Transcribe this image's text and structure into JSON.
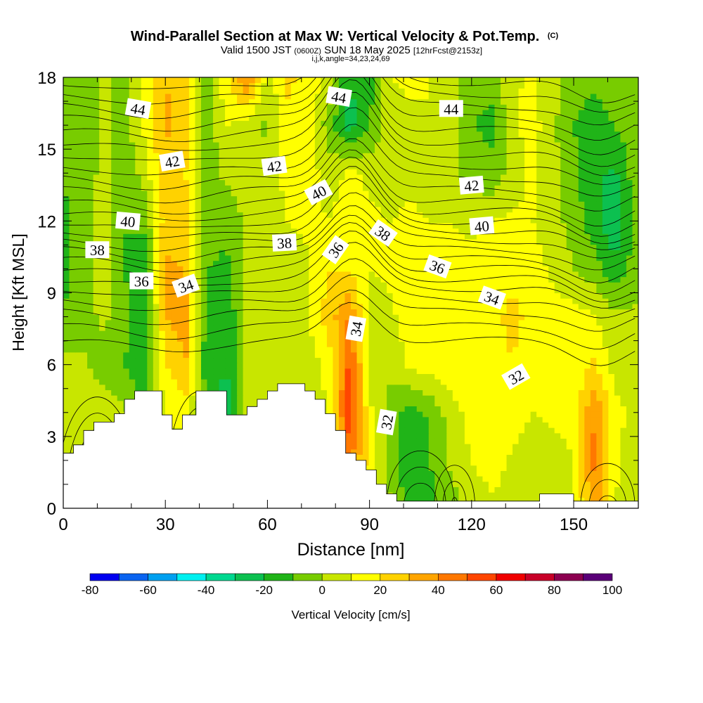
{
  "header": {
    "title": "Wind-Parallel Section at Max W: Vertical Velocity & Pot.Temp.",
    "copyright": "(C)",
    "valid_prefix": "Valid 1500 JST",
    "valid_utc": "(0600Z)",
    "valid_date": "SUN 18 May 2025",
    "forecast": "[12hrFcst@2153z]",
    "indices": "i,j,k,angle=34,23,24,69"
  },
  "chart_data": {
    "type": "heatmap",
    "xlabel": "Distance [nm]",
    "ylabel": "Height [Kft MSL]",
    "xlim": [
      0,
      169
    ],
    "ylim": [
      0,
      18
    ],
    "x_ticks": [
      0,
      30,
      60,
      90,
      120,
      150
    ],
    "y_ticks": [
      0,
      3,
      6,
      9,
      12,
      15,
      18
    ],
    "colorbar": {
      "label": "Vertical Velocity [cm/s]",
      "tick_values": [
        -80,
        -60,
        -40,
        -20,
        0,
        20,
        40,
        60,
        80,
        100
      ],
      "bounds": [
        -80,
        -70,
        -60,
        -50,
        -40,
        -30,
        -20,
        -10,
        0,
        10,
        20,
        30,
        40,
        50,
        60,
        70,
        80,
        90,
        100
      ],
      "colors": [
        "#0000f0",
        "#0a64f0",
        "#00a0f0",
        "#00f0f0",
        "#00d890",
        "#0cc050",
        "#20b418",
        "#78cc00",
        "#c8e600",
        "#ffff00",
        "#ffd200",
        "#ffa500",
        "#ff7800",
        "#ff4600",
        "#f00000",
        "#c80028",
        "#8c0050",
        "#5a0078"
      ]
    },
    "field": {
      "x": [
        0,
        6,
        12,
        18,
        24,
        30,
        36,
        42,
        48,
        54,
        60,
        66,
        72,
        78,
        84,
        90,
        96,
        102,
        108,
        114,
        120,
        126,
        132,
        138,
        144,
        150,
        156,
        162,
        168
      ],
      "z": [
        0,
        2,
        4,
        6,
        8,
        10,
        12,
        14,
        16,
        18
      ],
      "w": [
        [
          2,
          8,
          5,
          3,
          2,
          3,
          2,
          3,
          2,
          2,
          2,
          3,
          2,
          6,
          35,
          10,
          2,
          -15,
          -12,
          -5,
          3,
          8,
          5,
          3,
          2,
          8,
          38,
          10,
          5
        ],
        [
          6,
          10,
          8,
          5,
          4,
          5,
          3,
          -5,
          -10,
          4,
          5,
          3,
          2,
          8,
          45,
          15,
          -5,
          -18,
          -10,
          2,
          10,
          15,
          8,
          5,
          5,
          10,
          42,
          12,
          5
        ],
        [
          8,
          6,
          5,
          2,
          -15,
          10,
          15,
          -12,
          -25,
          5,
          3,
          4,
          3,
          10,
          58,
          12,
          -5,
          -15,
          -8,
          5,
          15,
          18,
          15,
          10,
          12,
          15,
          40,
          14,
          6
        ],
        [
          3,
          2,
          -5,
          -10,
          -15,
          20,
          30,
          -15,
          -20,
          3,
          2,
          5,
          3,
          15,
          52,
          10,
          3,
          12,
          15,
          18,
          12,
          16,
          20,
          14,
          10,
          12,
          22,
          5,
          3
        ],
        [
          -10,
          -5,
          3,
          -8,
          -15,
          30,
          35,
          -15,
          -18,
          3,
          5,
          8,
          10,
          25,
          40,
          5,
          8,
          15,
          18,
          20,
          14,
          18,
          22,
          18,
          14,
          15,
          10,
          3,
          2
        ],
        [
          -12,
          -5,
          5,
          -10,
          -15,
          32,
          30,
          -10,
          -12,
          2,
          4,
          6,
          8,
          20,
          20,
          10,
          12,
          18,
          16,
          14,
          12,
          16,
          18,
          14,
          8,
          0,
          -5,
          -18,
          -5
        ],
        [
          -12,
          -5,
          5,
          -10,
          -8,
          25,
          22,
          -5,
          -8,
          3,
          3,
          10,
          12,
          10,
          15,
          12,
          10,
          12,
          10,
          10,
          8,
          10,
          12,
          10,
          5,
          -5,
          -15,
          -28,
          -8
        ],
        [
          -10,
          -5,
          3,
          -8,
          5,
          28,
          20,
          -5,
          3,
          5,
          2,
          15,
          15,
          5,
          12,
          8,
          5,
          8,
          5,
          2,
          -5,
          -8,
          5,
          12,
          3,
          -8,
          -18,
          -22,
          -5
        ],
        [
          -10,
          -5,
          3,
          -5,
          12,
          32,
          25,
          -8,
          10,
          5,
          -2,
          18,
          14,
          -5,
          -25,
          -10,
          5,
          8,
          10,
          3,
          -10,
          -12,
          8,
          14,
          2,
          -10,
          -15,
          -10,
          -3
        ],
        [
          -10,
          -5,
          3,
          -5,
          12,
          30,
          25,
          -5,
          18,
          42,
          5,
          22,
          16,
          8,
          -20,
          -15,
          10,
          12,
          10,
          5,
          -5,
          -8,
          8,
          12,
          3,
          -5,
          -8,
          -5,
          -3
        ]
      ]
    },
    "terrain": [
      [
        0,
        2.3
      ],
      [
        3,
        2.3
      ],
      [
        3,
        2.65
      ],
      [
        6,
        2.65
      ],
      [
        6,
        3.25
      ],
      [
        9,
        3.25
      ],
      [
        9,
        3.6
      ],
      [
        15,
        3.6
      ],
      [
        15,
        3.95
      ],
      [
        18,
        3.95
      ],
      [
        18,
        4.55
      ],
      [
        21,
        4.55
      ],
      [
        21,
        4.9
      ],
      [
        29,
        4.9
      ],
      [
        29,
        3.9
      ],
      [
        32,
        3.9
      ],
      [
        32,
        3.3
      ],
      [
        35,
        3.3
      ],
      [
        35,
        3.9
      ],
      [
        39,
        3.9
      ],
      [
        39,
        4.9
      ],
      [
        48,
        4.9
      ],
      [
        48,
        3.9
      ],
      [
        54,
        3.9
      ],
      [
        54,
        4.25
      ],
      [
        57,
        4.25
      ],
      [
        57,
        4.55
      ],
      [
        60,
        4.55
      ],
      [
        60,
        4.9
      ],
      [
        63,
        4.9
      ],
      [
        63,
        5.2
      ],
      [
        71,
        5.2
      ],
      [
        71,
        4.9
      ],
      [
        74,
        4.9
      ],
      [
        74,
        4.55
      ],
      [
        77,
        4.55
      ],
      [
        77,
        3.95
      ],
      [
        80,
        3.95
      ],
      [
        80,
        3.25
      ],
      [
        83,
        3.25
      ],
      [
        83,
        2.3
      ],
      [
        86,
        2.3
      ],
      [
        86,
        2.0
      ],
      [
        89,
        2.0
      ],
      [
        89,
        1.6
      ],
      [
        92,
        1.6
      ],
      [
        92,
        1.0
      ],
      [
        95,
        1.0
      ],
      [
        95,
        0.6
      ],
      [
        98,
        0.6
      ],
      [
        98,
        0.3
      ],
      [
        140,
        0.3
      ],
      [
        140,
        0.6
      ],
      [
        150,
        0.6
      ],
      [
        150,
        0.3
      ],
      [
        169,
        0.3
      ]
    ],
    "theta_labels": [
      {
        "text": "44",
        "x": 22,
        "y": 16.7,
        "angle": 10
      },
      {
        "text": "44",
        "x": 81,
        "y": 17.2,
        "angle": 10
      },
      {
        "text": "44",
        "x": 114,
        "y": 16.7,
        "angle": 0
      },
      {
        "text": "42",
        "x": 32,
        "y": 14.5,
        "angle": -10
      },
      {
        "text": "42",
        "x": 62,
        "y": 14.3,
        "angle": -8
      },
      {
        "text": "42",
        "x": 120,
        "y": 13.5,
        "angle": -5
      },
      {
        "text": "40",
        "x": 19,
        "y": 12.0,
        "angle": 5
      },
      {
        "text": "40",
        "x": 75,
        "y": 13.2,
        "angle": -28
      },
      {
        "text": "40",
        "x": 123,
        "y": 11.8,
        "angle": -5
      },
      {
        "text": "38",
        "x": 10,
        "y": 10.8,
        "angle": 0
      },
      {
        "text": "38",
        "x": 65,
        "y": 11.1,
        "angle": -3
      },
      {
        "text": "38",
        "x": 94,
        "y": 11.5,
        "angle": 35
      },
      {
        "text": "36",
        "x": 23,
        "y": 9.5,
        "angle": 0
      },
      {
        "text": "36",
        "x": 80,
        "y": 10.8,
        "angle": -55
      },
      {
        "text": "36",
        "x": 110,
        "y": 10.1,
        "angle": 20
      },
      {
        "text": "34",
        "x": 36,
        "y": 9.3,
        "angle": -20
      },
      {
        "text": "34",
        "x": 86,
        "y": 7.5,
        "angle": -80
      },
      {
        "text": "34",
        "x": 126,
        "y": 8.8,
        "angle": 20
      },
      {
        "text": "32",
        "x": 95,
        "y": 3.6,
        "angle": -80
      },
      {
        "text": "32",
        "x": 133,
        "y": 5.5,
        "angle": -30
      }
    ]
  }
}
